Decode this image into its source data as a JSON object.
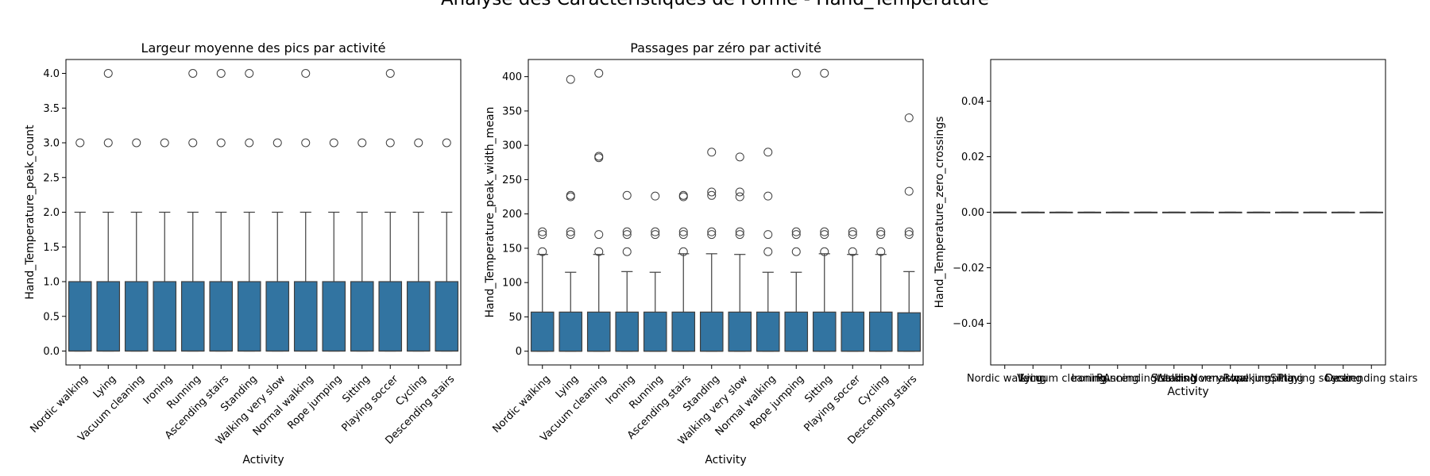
{
  "figure": {
    "suptitle": "Analyse des Caractéristiques de Forme - Hand_Temperature"
  },
  "colors": {
    "box_fill": "#3274a1",
    "box_edge": "#3f3f3f",
    "outlier_edge": "#3f3f3f"
  },
  "chart_data": [
    {
      "type": "box",
      "title": "Largeur moyenne des pics par activité",
      "xlabel": "Activity",
      "ylabel": "Hand_Temperature_peak_count",
      "ylim": [
        -0.2,
        4.2
      ],
      "yticks": [
        0.0,
        0.5,
        1.0,
        1.5,
        2.0,
        2.5,
        3.0,
        3.5,
        4.0
      ],
      "ytick_labels": [
        "0.0",
        "0.5",
        "1.0",
        "1.5",
        "2.0",
        "2.5",
        "3.0",
        "3.5",
        "4.0"
      ],
      "categories": [
        "Nordic walking",
        "Lying",
        "Vacuum cleaning",
        "Ironing",
        "Running",
        "Ascending stairs",
        "Standing",
        "Walking very slow",
        "Normal walking",
        "Rope jumping",
        "Sitting",
        "Playing soccer",
        "Cycling",
        "Descending stairs"
      ],
      "boxes": [
        {
          "q1": 0,
          "median": 0,
          "q3": 1,
          "whislo": 0,
          "whishi": 2,
          "fliers": [
            3
          ]
        },
        {
          "q1": 0,
          "median": 0,
          "q3": 1,
          "whislo": 0,
          "whishi": 2,
          "fliers": [
            3,
            4
          ]
        },
        {
          "q1": 0,
          "median": 0,
          "q3": 1,
          "whislo": 0,
          "whishi": 2,
          "fliers": [
            3
          ]
        },
        {
          "q1": 0,
          "median": 0,
          "q3": 1,
          "whislo": 0,
          "whishi": 2,
          "fliers": [
            3
          ]
        },
        {
          "q1": 0,
          "median": 0,
          "q3": 1,
          "whislo": 0,
          "whishi": 2,
          "fliers": [
            3,
            4
          ]
        },
        {
          "q1": 0,
          "median": 0,
          "q3": 1,
          "whislo": 0,
          "whishi": 2,
          "fliers": [
            3,
            4
          ]
        },
        {
          "q1": 0,
          "median": 0,
          "q3": 1,
          "whislo": 0,
          "whishi": 2,
          "fliers": [
            3,
            4
          ]
        },
        {
          "q1": 0,
          "median": 0,
          "q3": 1,
          "whislo": 0,
          "whishi": 2,
          "fliers": [
            3
          ]
        },
        {
          "q1": 0,
          "median": 0,
          "q3": 1,
          "whislo": 0,
          "whishi": 2,
          "fliers": [
            3,
            4
          ]
        },
        {
          "q1": 0,
          "median": 0,
          "q3": 1,
          "whislo": 0,
          "whishi": 2,
          "fliers": [
            3
          ]
        },
        {
          "q1": 0,
          "median": 0,
          "q3": 1,
          "whislo": 0,
          "whishi": 2,
          "fliers": [
            3
          ]
        },
        {
          "q1": 0,
          "median": 0,
          "q3": 1,
          "whislo": 0,
          "whishi": 2,
          "fliers": [
            3,
            4
          ]
        },
        {
          "q1": 0,
          "median": 0,
          "q3": 1,
          "whislo": 0,
          "whishi": 2,
          "fliers": [
            3
          ]
        },
        {
          "q1": 0,
          "median": 0,
          "q3": 1,
          "whislo": 0,
          "whishi": 2,
          "fliers": [
            3
          ]
        }
      ]
    },
    {
      "type": "box",
      "title": "Passages par zéro par activité",
      "xlabel": "Activity",
      "ylabel": "Hand_Temperature_peak_width_mean",
      "ylim": [
        -20,
        425
      ],
      "yticks": [
        0,
        50,
        100,
        150,
        200,
        250,
        300,
        350,
        400
      ],
      "ytick_labels": [
        "0",
        "50",
        "100",
        "150",
        "200",
        "250",
        "300",
        "350",
        "400"
      ],
      "categories": [
        "Nordic walking",
        "Lying",
        "Vacuum cleaning",
        "Ironing",
        "Running",
        "Ascending stairs",
        "Standing",
        "Walking very slow",
        "Normal walking",
        "Rope jumping",
        "Sitting",
        "Playing soccer",
        "Cycling",
        "Descending stairs"
      ],
      "boxes": [
        {
          "q1": 0,
          "median": 0,
          "q3": 57,
          "whislo": 0,
          "whishi": 141,
          "fliers": [
            145,
            170,
            174
          ]
        },
        {
          "q1": 0,
          "median": 0,
          "q3": 57,
          "whislo": 0,
          "whishi": 115,
          "fliers": [
            170,
            174,
            225,
            227,
            396
          ]
        },
        {
          "q1": 0,
          "median": 0,
          "q3": 57,
          "whislo": 0,
          "whishi": 141,
          "fliers": [
            145,
            170,
            282,
            284,
            405
          ]
        },
        {
          "q1": 0,
          "median": 0,
          "q3": 57,
          "whislo": 0,
          "whishi": 116,
          "fliers": [
            145,
            170,
            174,
            227
          ]
        },
        {
          "q1": 0,
          "median": 0,
          "q3": 57,
          "whislo": 0,
          "whishi": 115,
          "fliers": [
            170,
            174,
            226
          ]
        },
        {
          "q1": 0,
          "median": 0,
          "q3": 57,
          "whislo": 0,
          "whishi": 142,
          "fliers": [
            145,
            170,
            174,
            225,
            227
          ]
        },
        {
          "q1": 0,
          "median": 0,
          "q3": 57,
          "whislo": 0,
          "whishi": 142,
          "fliers": [
            170,
            174,
            227,
            232,
            290
          ]
        },
        {
          "q1": 0,
          "median": 0,
          "q3": 57,
          "whislo": 0,
          "whishi": 141,
          "fliers": [
            170,
            174,
            225,
            232,
            283
          ]
        },
        {
          "q1": 0,
          "median": 0,
          "q3": 57,
          "whislo": 0,
          "whishi": 115,
          "fliers": [
            145,
            170,
            226,
            290
          ]
        },
        {
          "q1": 0,
          "median": 0,
          "q3": 57,
          "whislo": 0,
          "whishi": 115,
          "fliers": [
            145,
            170,
            174,
            405
          ]
        },
        {
          "q1": 0,
          "median": 0,
          "q3": 57,
          "whislo": 0,
          "whishi": 142,
          "fliers": [
            145,
            170,
            174,
            405
          ]
        },
        {
          "q1": 0,
          "median": 0,
          "q3": 57,
          "whislo": 0,
          "whishi": 141,
          "fliers": [
            145,
            170,
            174
          ]
        },
        {
          "q1": 0,
          "median": 0,
          "q3": 57,
          "whislo": 0,
          "whishi": 141,
          "fliers": [
            145,
            170,
            174
          ]
        },
        {
          "q1": 0,
          "median": 0,
          "q3": 56,
          "whislo": 0,
          "whishi": 116,
          "fliers": [
            170,
            174,
            233,
            340
          ]
        }
      ]
    },
    {
      "type": "box",
      "title": "",
      "xlabel": "Activity",
      "ylabel": "Hand_Temperature_zero_crossings",
      "ylim": [
        -0.055,
        0.055
      ],
      "yticks": [
        -0.04,
        -0.02,
        0.0,
        0.02,
        0.04
      ],
      "ytick_labels": [
        "−0.04",
        "−0.02",
        "0.00",
        "0.02",
        "0.04"
      ],
      "categories": [
        "Nordic walking",
        "Lying",
        "Vacuum cleaning",
        "Ironing",
        "Running",
        "Ascending stairs",
        "Standing",
        "Walking very slow",
        "Normal walking",
        "Rope jumping",
        "Sitting",
        "Playing soccer",
        "Cycling",
        "Descending stairs"
      ],
      "boxes": [
        {
          "q1": 0,
          "median": 0,
          "q3": 0,
          "whislo": 0,
          "whishi": 0,
          "fliers": []
        },
        {
          "q1": 0,
          "median": 0,
          "q3": 0,
          "whislo": 0,
          "whishi": 0,
          "fliers": []
        },
        {
          "q1": 0,
          "median": 0,
          "q3": 0,
          "whislo": 0,
          "whishi": 0,
          "fliers": []
        },
        {
          "q1": 0,
          "median": 0,
          "q3": 0,
          "whislo": 0,
          "whishi": 0,
          "fliers": []
        },
        {
          "q1": 0,
          "median": 0,
          "q3": 0,
          "whislo": 0,
          "whishi": 0,
          "fliers": []
        },
        {
          "q1": 0,
          "median": 0,
          "q3": 0,
          "whislo": 0,
          "whishi": 0,
          "fliers": []
        },
        {
          "q1": 0,
          "median": 0,
          "q3": 0,
          "whislo": 0,
          "whishi": 0,
          "fliers": []
        },
        {
          "q1": 0,
          "median": 0,
          "q3": 0,
          "whislo": 0,
          "whishi": 0,
          "fliers": []
        },
        {
          "q1": 0,
          "median": 0,
          "q3": 0,
          "whislo": 0,
          "whishi": 0,
          "fliers": []
        },
        {
          "q1": 0,
          "median": 0,
          "q3": 0,
          "whislo": 0,
          "whishi": 0,
          "fliers": []
        },
        {
          "q1": 0,
          "median": 0,
          "q3": 0,
          "whislo": 0,
          "whishi": 0,
          "fliers": []
        },
        {
          "q1": 0,
          "median": 0,
          "q3": 0,
          "whislo": 0,
          "whishi": 0,
          "fliers": []
        },
        {
          "q1": 0,
          "median": 0,
          "q3": 0,
          "whislo": 0,
          "whishi": 0,
          "fliers": []
        },
        {
          "q1": 0,
          "median": 0,
          "q3": 0,
          "whislo": 0,
          "whishi": 0,
          "fliers": []
        }
      ]
    }
  ]
}
